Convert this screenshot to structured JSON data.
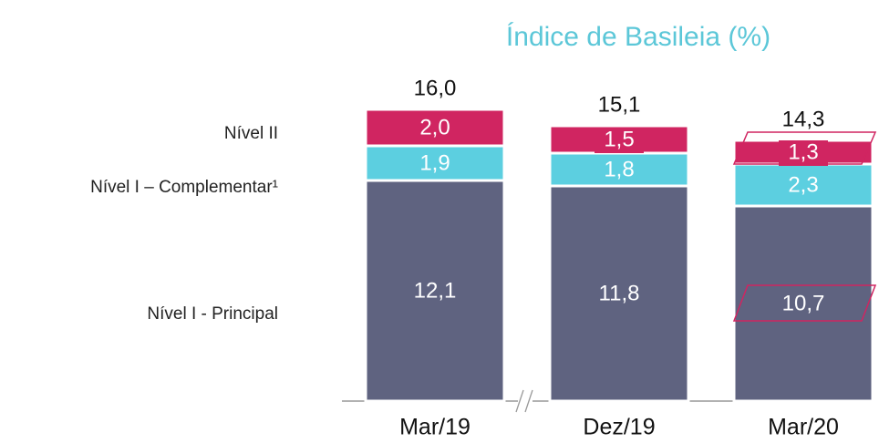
{
  "chart_data": {
    "type": "stacked-bar",
    "title": "Índice de Basileia (%)",
    "categories": [
      "Mar/19",
      "Dez/19",
      "Mar/20"
    ],
    "series": [
      {
        "name": "Nível I - Principal",
        "color": "#5f6380",
        "values": [
          12.1,
          11.8,
          10.7
        ],
        "value_labels": [
          "12,1",
          "11,8",
          "10,7"
        ]
      },
      {
        "name": "Nível I – Complementar¹",
        "color": "#5ccfe0",
        "values": [
          1.9,
          1.8,
          2.3
        ],
        "value_labels": [
          "1,9",
          "1,8",
          "2,3"
        ]
      },
      {
        "name": "Nível  II",
        "color": "#d02561",
        "values": [
          2.0,
          1.5,
          1.3
        ],
        "value_labels": [
          "2,0",
          "1,5",
          "1,3"
        ]
      }
    ],
    "totals": [
      16.0,
      15.1,
      14.3
    ],
    "total_labels": [
      "16,0",
      "15,1",
      "14,3"
    ],
    "ylim": [
      0,
      17.5
    ]
  }
}
